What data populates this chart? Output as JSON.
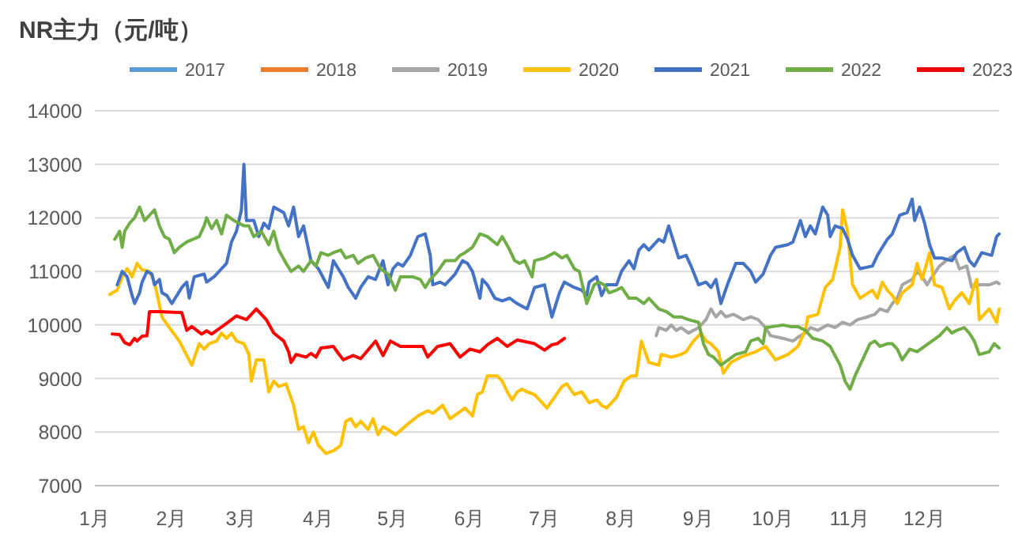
{
  "chart_data": {
    "type": "line",
    "title": "NR主力（元/吨）",
    "legend": "top",
    "grid": "y",
    "line_style": "solid",
    "marker": "none",
    "xlim": [
      "--01-01",
      "--12-31"
    ],
    "xticks": [
      {
        "value": "--01-01",
        "label": "1月"
      },
      {
        "value": "--02-01",
        "label": "2月"
      },
      {
        "value": "--03-01",
        "label": "3月"
      },
      {
        "value": "--04-01",
        "label": "4月"
      },
      {
        "value": "--05-01",
        "label": "5月"
      },
      {
        "value": "--06-01",
        "label": "6月"
      },
      {
        "value": "--07-01",
        "label": "7月"
      },
      {
        "value": "--08-01",
        "label": "8月"
      },
      {
        "value": "--09-01",
        "label": "9月"
      },
      {
        "value": "--10-01",
        "label": "10月"
      },
      {
        "value": "--11-01",
        "label": "11月"
      },
      {
        "value": "--12-01",
        "label": "12月"
      }
    ],
    "ylim": [
      7000,
      14000
    ],
    "yticks": [
      7000,
      8000,
      9000,
      10000,
      11000,
      12000,
      13000,
      14000
    ],
    "series": [
      {
        "name": "2017",
        "color": "#5b9bd5"
      },
      {
        "name": "2018",
        "color": "#ed7d31"
      },
      {
        "name": "2019",
        "color": "#a5a5a5",
        "x": [
          "--08-15",
          "--08-16",
          "--08-19",
          "--08-21",
          "--08-23",
          "--08-25",
          "--08-28",
          "--09-01",
          "--09-04",
          "--09-06",
          "--09-08",
          "--09-10",
          "--09-12",
          "--09-15",
          "--09-19",
          "--09-22",
          "--09-25",
          "--09-28",
          "--09-30",
          "--10-05",
          "--10-09",
          "--10-12",
          "--10-14",
          "--10-16",
          "--10-19",
          "--10-23",
          "--10-26",
          "--10-29",
          "--11-01",
          "--11-04",
          "--11-08",
          "--11-11",
          "--11-13",
          "--11-16",
          "--11-18",
          "--11-20",
          "--11-22",
          "--11-26",
          "--11-28",
          "--11-30",
          "--12-02",
          "--12-04",
          "--12-07",
          "--12-11",
          "--12-13",
          "--12-15",
          "--12-18",
          "--12-20",
          "--12-23",
          "--12-27",
          "--12-30",
          "--12-31"
        ],
        "values": [
          9800,
          9950,
          9900,
          10000,
          9900,
          9950,
          9850,
          9950,
          10100,
          10300,
          10150,
          10250,
          10150,
          10200,
          10100,
          10150,
          10100,
          9950,
          9800,
          9750,
          9700,
          9800,
          9850,
          9950,
          9900,
          10000,
          9950,
          10050,
          10000,
          10100,
          10150,
          10200,
          10300,
          10250,
          10400,
          10500,
          10750,
          10850,
          11000,
          10900,
          10750,
          10900,
          11100,
          11250,
          11300,
          11050,
          11100,
          10700,
          10750,
          10750,
          10800,
          10770
        ]
      },
      {
        "name": "2020",
        "color": "#ffc000",
        "x": [
          "--01-07",
          "--01-10",
          "--01-12",
          "--01-14",
          "--01-16",
          "--01-18",
          "--01-20",
          "--01-23",
          "--01-25",
          "--01-28",
          "--01-31",
          "--02-04",
          "--02-09",
          "--02-12",
          "--02-14",
          "--02-16",
          "--02-19",
          "--02-21",
          "--02-23",
          "--02-25",
          "--02-27",
          "--03-02",
          "--03-04",
          "--03-05",
          "--03-07",
          "--03-10",
          "--03-12",
          "--03-14",
          "--03-16",
          "--03-19",
          "--03-22",
          "--03-24",
          "--03-26",
          "--03-28",
          "--03-30",
          "--04-01",
          "--04-04",
          "--04-07",
          "--04-10",
          "--04-12",
          "--04-14",
          "--04-16",
          "--04-18",
          "--04-21",
          "--04-23",
          "--04-25",
          "--04-27",
          "--04-29",
          "--05-02",
          "--05-07",
          "--05-11",
          "--05-15",
          "--05-17",
          "--05-21",
          "--05-24",
          "--05-27",
          "--05-30",
          "--06-02",
          "--06-04",
          "--06-06",
          "--06-08",
          "--06-12",
          "--06-14",
          "--06-16",
          "--06-18",
          "--06-20",
          "--06-22",
          "--06-24",
          "--06-27",
          "--06-29",
          "--07-02",
          "--07-05",
          "--07-08",
          "--07-10",
          "--07-13",
          "--07-16",
          "--07-19",
          "--07-22",
          "--07-24",
          "--07-26",
          "--07-30",
          "--08-02",
          "--08-05",
          "--08-07",
          "--08-09",
          "--08-12",
          "--08-16",
          "--08-17",
          "--08-21",
          "--08-25",
          "--08-27",
          "--08-30",
          "--09-02",
          "--09-04",
          "--09-06",
          "--09-09",
          "--09-11",
          "--09-14",
          "--09-18",
          "--09-21",
          "--09-24",
          "--09-28",
          "--10-02",
          "--10-07",
          "--10-11",
          "--10-14",
          "--10-15",
          "--10-19",
          "--10-22",
          "--10-25",
          "--10-28",
          "--10-29",
          "--10-31",
          "--11-02",
          "--11-05",
          "--11-10",
          "--11-12",
          "--11-14",
          "--11-16",
          "--11-18",
          "--11-20",
          "--11-22",
          "--11-26",
          "--11-28",
          "--11-30",
          "--12-03",
          "--12-05",
          "--12-08",
          "--12-11",
          "--12-13",
          "--12-16",
          "--12-19",
          "--12-21",
          "--12-22",
          "--12-23",
          "--12-27",
          "--12-30",
          "--12-31"
        ],
        "values": [
          10570,
          10650,
          10900,
          11050,
          10900,
          11150,
          11030,
          11000,
          10800,
          10150,
          9950,
          9700,
          9250,
          9650,
          9550,
          9650,
          9700,
          9850,
          9750,
          9850,
          9700,
          9650,
          9450,
          8950,
          9350,
          9350,
          8750,
          8950,
          8850,
          8900,
          8500,
          8050,
          8100,
          7800,
          8000,
          7750,
          7600,
          7650,
          7750,
          8200,
          8250,
          8100,
          8200,
          8050,
          8250,
          7950,
          8100,
          8050,
          7950,
          8150,
          8300,
          8400,
          8350,
          8500,
          8250,
          8350,
          8450,
          8300,
          8700,
          8750,
          9050,
          9050,
          8950,
          8750,
          8600,
          8750,
          8800,
          8750,
          8700,
          8600,
          8450,
          8650,
          8850,
          8900,
          8700,
          8750,
          8550,
          8600,
          8500,
          8450,
          8650,
          8950,
          9050,
          9050,
          9700,
          9300,
          9250,
          9450,
          9400,
          9450,
          9500,
          9700,
          9850,
          9700,
          9650,
          9500,
          9100,
          9300,
          9400,
          9450,
          9500,
          9600,
          9350,
          9450,
          9600,
          9900,
          10150,
          10200,
          10700,
          10850,
          11450,
          12150,
          11750,
          10750,
          10500,
          10650,
          10500,
          10800,
          10650,
          10550,
          10400,
          10600,
          10750,
          11150,
          10850,
          11350,
          10750,
          10700,
          10300,
          10450,
          10600,
          10400,
          10750,
          10850,
          10100,
          10300,
          10050,
          10300
        ]
      },
      {
        "name": "2021",
        "color": "#4472c4",
        "x": [
          "--01-10",
          "--01-12",
          "--01-14",
          "--01-16",
          "--01-17",
          "--01-19",
          "--01-20",
          "--01-22",
          "--01-24",
          "--01-25",
          "--01-27",
          "--01-28",
          "--01-30",
          "--02-01",
          "--02-03",
          "--02-05",
          "--02-07",
          "--02-08",
          "--02-10",
          "--02-14",
          "--02-15",
          "--02-18",
          "--02-21",
          "--02-23",
          "--02-25",
          "--02-27",
          "--03-01",
          "--03-02",
          "--03-03",
          "--03-06",
          "--03-08",
          "--03-10",
          "--03-12",
          "--03-14",
          "--03-18",
          "--03-20",
          "--03-22",
          "--03-24",
          "--03-26",
          "--03-29",
          "--04-01",
          "--04-05",
          "--04-07",
          "--04-09",
          "--04-11",
          "--04-13",
          "--04-16",
          "--04-18",
          "--04-21",
          "--04-24",
          "--04-27",
          "--04-29",
          "--05-01",
          "--05-03",
          "--05-05",
          "--05-08",
          "--05-11",
          "--05-14",
          "--05-16",
          "--05-17",
          "--05-20",
          "--05-22",
          "--05-26",
          "--05-29",
          "--05-31",
          "--06-02",
          "--06-05",
          "--06-06",
          "--06-08",
          "--06-11",
          "--06-14",
          "--06-17",
          "--06-20",
          "--06-22",
          "--06-24",
          "--06-27",
          "--07-01",
          "--07-03",
          "--07-04",
          "--07-05",
          "--07-07",
          "--07-09",
          "--07-13",
          "--07-16",
          "--07-18",
          "--07-19",
          "--07-22",
          "--07-24",
          "--07-26",
          "--07-30",
          "--08-01",
          "--08-04",
          "--08-06",
          "--08-08",
          "--08-10",
          "--08-12",
          "--08-16",
          "--08-18",
          "--08-20",
          "--08-22",
          "--08-24",
          "--08-27",
          "--08-29",
          "--09-01",
          "--09-04",
          "--09-06",
          "--09-08",
          "--09-10",
          "--09-13",
          "--09-16",
          "--09-19",
          "--09-22",
          "--09-24",
          "--09-27",
          "--09-30",
          "--10-02",
          "--10-07",
          "--10-09",
          "--10-12",
          "--10-14",
          "--10-16",
          "--10-18",
          "--10-21",
          "--10-23",
          "--10-24",
          "--10-26",
          "--10-29",
          "--10-31",
          "--11-02",
          "--11-05",
          "--11-10",
          "--11-12",
          "--11-16",
          "--11-18",
          "--11-21",
          "--11-24",
          "--11-26",
          "--11-27",
          "--11-29",
          "--12-01",
          "--12-03",
          "--12-05",
          "--12-08",
          "--12-12",
          "--12-14",
          "--12-17",
          "--12-19",
          "--12-21",
          "--12-24",
          "--12-28",
          "--12-30",
          "--12-31"
        ],
        "values": [
          10750,
          11000,
          10900,
          10550,
          10400,
          10600,
          10800,
          11000,
          10950,
          10750,
          10850,
          10600,
          10550,
          10400,
          10550,
          10700,
          10800,
          10500,
          10900,
          10950,
          10800,
          10900,
          11050,
          11150,
          11550,
          11750,
          12150,
          13000,
          11950,
          11950,
          11650,
          11900,
          11800,
          12200,
          12100,
          11850,
          12200,
          11650,
          11850,
          11200,
          11050,
          10700,
          11200,
          11050,
          10900,
          10700,
          10500,
          10700,
          10900,
          10850,
          11200,
          10750,
          11050,
          11150,
          11100,
          11300,
          11650,
          11700,
          11300,
          10750,
          10800,
          10750,
          10950,
          11200,
          11150,
          11000,
          10500,
          10850,
          10750,
          10500,
          10450,
          10500,
          10400,
          10350,
          10300,
          10700,
          10750,
          10350,
          10150,
          10300,
          10600,
          10800,
          10700,
          10650,
          10550,
          10800,
          10900,
          10550,
          10750,
          10750,
          11000,
          11200,
          11050,
          11400,
          11500,
          11400,
          11600,
          11550,
          11850,
          11550,
          11250,
          11300,
          11100,
          10750,
          10800,
          10700,
          10850,
          10400,
          10800,
          11150,
          11150,
          11000,
          10800,
          10950,
          11300,
          11450,
          11500,
          11550,
          11950,
          11650,
          11850,
          11700,
          12200,
          12050,
          11650,
          11850,
          11800,
          11600,
          11300,
          11050,
          11100,
          11300,
          11600,
          11700,
          12050,
          12100,
          12350,
          11950,
          12200,
          11900,
          11500,
          11250,
          11250,
          11200,
          11350,
          11450,
          11200,
          11100,
          11350,
          11300,
          11650,
          11700
        ]
      },
      {
        "name": "2022",
        "color": "#70ad47",
        "x": [
          "--01-09",
          "--01-11",
          "--01-12",
          "--01-13",
          "--01-15",
          "--01-17",
          "--01-19",
          "--01-21",
          "--01-23",
          "--01-25",
          "--01-27",
          "--01-29",
          "--01-31",
          "--02-02",
          "--02-04",
          "--02-07",
          "--02-12",
          "--02-14",
          "--02-15",
          "--02-17",
          "--02-19",
          "--02-21",
          "--02-23",
          "--02-26",
          "--03-02",
          "--03-04",
          "--03-06",
          "--03-09",
          "--03-12",
          "--03-14",
          "--03-16",
          "--03-19",
          "--03-21",
          "--03-24",
          "--03-26",
          "--03-29",
          "--03-31",
          "--04-02",
          "--04-05",
          "--04-07",
          "--04-10",
          "--04-12",
          "--04-15",
          "--04-17",
          "--04-20",
          "--04-23",
          "--04-26",
          "--04-29",
          "--05-02",
          "--05-04",
          "--05-09",
          "--05-12",
          "--05-14",
          "--05-16",
          "--05-19",
          "--05-22",
          "--05-26",
          "--05-28",
          "--05-30",
          "--06-02",
          "--06-05",
          "--06-08",
          "--06-12",
          "--06-14",
          "--06-17",
          "--06-19",
          "--06-21",
          "--06-23",
          "--06-26",
          "--06-27",
          "--07-01",
          "--07-05",
          "--07-08",
          "--07-10",
          "--07-13",
          "--07-15",
          "--07-18",
          "--07-21",
          "--07-23",
          "--07-25",
          "--07-27",
          "--07-30",
          "--08-01",
          "--08-04",
          "--08-07",
          "--08-10",
          "--08-12",
          "--08-16",
          "--08-19",
          "--08-22",
          "--08-25",
          "--08-28",
          "--09-01",
          "--09-03",
          "--09-05",
          "--09-07",
          "--09-10",
          "--09-13",
          "--09-16",
          "--09-20",
          "--09-22",
          "--09-25",
          "--09-27",
          "--09-28",
          "--10-01",
          "--10-05",
          "--10-08",
          "--10-11",
          "--10-14",
          "--10-17",
          "--10-21",
          "--10-24",
          "--10-28",
          "--10-30",
          "--11-01",
          "--11-03",
          "--11-05",
          "--11-09",
          "--11-11",
          "--11-13",
          "--11-16",
          "--11-18",
          "--11-20",
          "--11-22",
          "--11-25",
          "--11-28",
          "--12-01",
          "--12-04",
          "--12-07",
          "--12-10",
          "--12-12",
          "--12-14",
          "--12-17",
          "--12-19",
          "--12-21",
          "--12-23",
          "--12-27",
          "--12-29",
          "--12-31"
        ],
        "values": [
          11600,
          11750,
          11450,
          11750,
          11900,
          12000,
          12200,
          11950,
          12050,
          12150,
          11850,
          11650,
          11600,
          11350,
          11450,
          11550,
          11650,
          11850,
          12000,
          11800,
          11950,
          11700,
          12050,
          11950,
          11850,
          11850,
          11650,
          11750,
          11500,
          11750,
          11400,
          11150,
          11000,
          11100,
          11000,
          11200,
          11100,
          11350,
          11300,
          11350,
          11400,
          11250,
          11300,
          11150,
          11250,
          11300,
          11050,
          10950,
          10650,
          10900,
          10900,
          10850,
          10700,
          10850,
          11000,
          11200,
          11200,
          11300,
          11350,
          11450,
          11700,
          11650,
          11500,
          11650,
          11400,
          11200,
          11150,
          11200,
          10900,
          11200,
          11250,
          11350,
          11250,
          11300,
          11050,
          11000,
          10400,
          10750,
          10800,
          10750,
          10600,
          10650,
          10700,
          10500,
          10500,
          10400,
          10500,
          10300,
          10250,
          10150,
          10150,
          10100,
          10050,
          9650,
          9450,
          9400,
          9250,
          9350,
          9450,
          9500,
          9700,
          9750,
          9650,
          9950,
          9970,
          10000,
          9970,
          9970,
          9900,
          9750,
          9700,
          9600,
          9250,
          8950,
          8800,
          9050,
          9250,
          9650,
          9700,
          9600,
          9650,
          9650,
          9550,
          9350,
          9550,
          9500,
          9600,
          9700,
          9800,
          9950,
          9850,
          9900,
          9950,
          9850,
          9700,
          9450,
          9500,
          9650,
          9570
        ]
      },
      {
        "name": "2023",
        "color": "#ff0000",
        "x": [
          "--01-08",
          "--01-11",
          "--01-13",
          "--01-15",
          "--01-17",
          "--01-18",
          "--01-20",
          "--01-22",
          "--01-23",
          "--01-27",
          "--02-05",
          "--02-07",
          "--02-09",
          "--02-13",
          "--02-15",
          "--02-17",
          "--02-20",
          "--02-23",
          "--02-27",
          "--03-03",
          "--03-07",
          "--03-11",
          "--03-14",
          "--03-18",
          "--03-20",
          "--03-21",
          "--03-23",
          "--03-27",
          "--03-29",
          "--03-31",
          "--04-02",
          "--04-07",
          "--04-09",
          "--04-11",
          "--04-15",
          "--04-18",
          "--04-24",
          "--04-27",
          "--04-30",
          "--05-04",
          "--05-13",
          "--05-15",
          "--05-19",
          "--05-24",
          "--05-28",
          "--06-01",
          "--06-05",
          "--06-08",
          "--06-12",
          "--06-16",
          "--06-20",
          "--06-27",
          "--07-01",
          "--07-04",
          "--07-06",
          "--07-09"
        ],
        "values": [
          9830,
          9820,
          9670,
          9630,
          9750,
          9700,
          9790,
          9800,
          10250,
          10250,
          10230,
          9900,
          9970,
          9830,
          9890,
          9830,
          9930,
          10030,
          10170,
          10100,
          10300,
          10100,
          9850,
          9700,
          9500,
          9300,
          9450,
          9400,
          9470,
          9400,
          9570,
          9600,
          9470,
          9350,
          9430,
          9370,
          9700,
          9430,
          9700,
          9600,
          9600,
          9400,
          9600,
          9650,
          9400,
          9550,
          9500,
          9630,
          9750,
          9600,
          9720,
          9650,
          9530,
          9630,
          9650,
          9750
        ]
      }
    ]
  }
}
